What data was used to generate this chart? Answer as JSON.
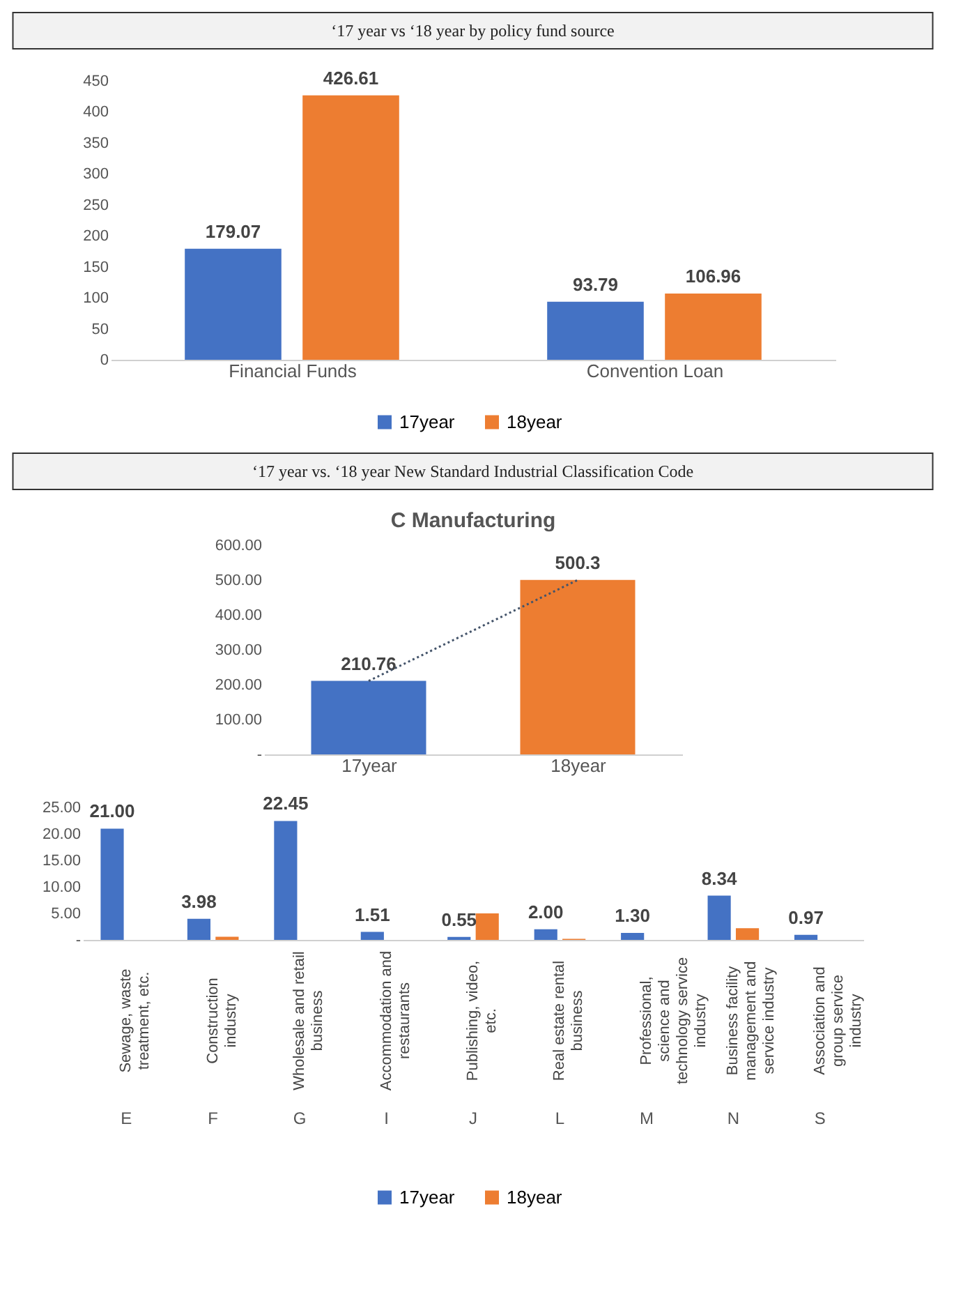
{
  "chart_data": [
    {
      "type": "bar",
      "title": "‘17 year vs ‘18 year by policy fund source",
      "categories": [
        "Financial Funds",
        "Convention Loan"
      ],
      "series": [
        {
          "name": "17year",
          "color": "#4472c4",
          "values": [
            179.07,
            93.79
          ]
        },
        {
          "name": "18year",
          "color": "#ed7d31",
          "values": [
            426.61,
            106.96
          ]
        }
      ],
      "ylim": [
        0,
        450
      ],
      "yticks": [
        0,
        50,
        100,
        150,
        200,
        250,
        300,
        350,
        400,
        450
      ],
      "data_labels": true,
      "grid": false,
      "legend": "bottom"
    },
    {
      "type": "bar",
      "title": "C Manufacturing",
      "annotations": [
        "‘17 year vs. ‘18 year New Standard Industrial Classification Code"
      ],
      "categories": [
        "17year",
        "18year"
      ],
      "series": [
        {
          "type": "bar",
          "colors": [
            "#4472c4",
            "#ed7d31"
          ],
          "values": [
            210.76,
            500.3
          ],
          "value_labels": [
            "210.76",
            "500.3"
          ]
        },
        {
          "type": "line",
          "color": "#44546a",
          "line_style": "dotted",
          "values": [
            210.76,
            500.3
          ],
          "value_labels": [
            null,
            null
          ]
        }
      ],
      "ylim": [
        0,
        600
      ],
      "yticks": [
        {
          "value": 0,
          "label": "-"
        },
        {
          "value": 100,
          "label": "100.00"
        },
        {
          "value": 200,
          "label": "200.00"
        },
        {
          "value": 300,
          "label": "300.00"
        },
        {
          "value": 400,
          "label": "400.00"
        },
        {
          "value": 500,
          "label": "500.00"
        },
        {
          "value": 600,
          "label": "600.00"
        }
      ],
      "grid": false
    },
    {
      "type": "bar",
      "categories": [
        "Sewage, waste treatment, etc.",
        "Construction industry",
        "Wholesale and retail business",
        "Accommodation and restaurants",
        "Publishing, video, etc.",
        "Real estate rental business",
        "Professional, science and technology service industry",
        "Business facility management and service industry",
        "Association and group service industry"
      ],
      "annotations": [
        "E",
        "F",
        "G",
        "I",
        "J",
        "L",
        "M",
        "N",
        "S"
      ],
      "series": [
        {
          "name": "17year",
          "color": "#4472c4",
          "values": [
            21.0,
            3.98,
            22.45,
            1.51,
            0.55,
            2.0,
            1.3,
            8.34,
            0.97
          ],
          "value_labels": [
            "21.00",
            "3.98",
            "22.45",
            "1.51",
            "0.55",
            "2.00",
            "1.30",
            "8.34",
            "0.97"
          ]
        },
        {
          "name": "18year",
          "color": "#ed7d31",
          "values": [
            null,
            0.6,
            null,
            null,
            5.0,
            0.2,
            null,
            2.2,
            null
          ]
        }
      ],
      "ylim": [
        0,
        25
      ],
      "yticks": [
        {
          "value": 0,
          "label": "-"
        },
        {
          "value": 5,
          "label": "5.00"
        },
        {
          "value": 10,
          "label": "10.00"
        },
        {
          "value": 15,
          "label": "15.00"
        },
        {
          "value": 20,
          "label": "20.00"
        },
        {
          "value": 25,
          "label": "25.00"
        }
      ],
      "grid": false,
      "legend": "bottom"
    }
  ]
}
